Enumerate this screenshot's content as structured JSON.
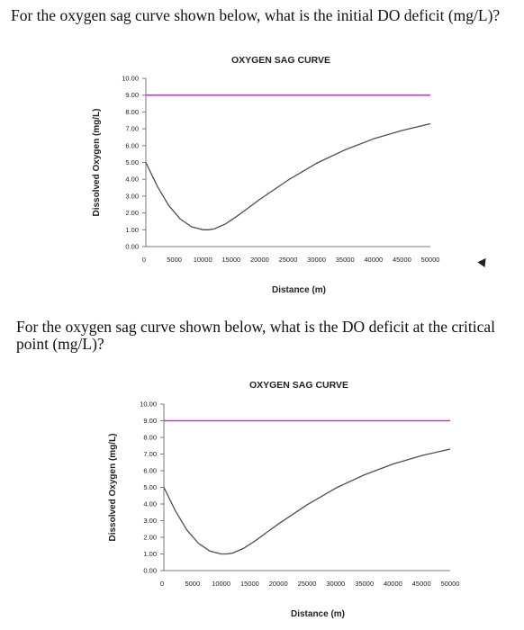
{
  "questions": {
    "q1": "For the oxygen sag curve shown below, what is the initial DO deficit (mg/L)?",
    "q2": "For the oxygen sag curve shown below, what is the DO deficit at the critical point (mg/L)?"
  },
  "chart_data": [
    {
      "type": "line",
      "title": "OXYGEN SAG CURVE",
      "xlabel": "Distance (m)",
      "ylabel": "Dissolved Oxygen (mg/L)",
      "xlim": [
        0,
        50000
      ],
      "ylim": [
        0,
        10
      ],
      "x_ticks": [
        "0",
        "5000",
        "10000",
        "15000",
        "20000",
        "25000",
        "30000",
        "35000",
        "40000",
        "45000",
        "50000"
      ],
      "y_ticks": [
        "0.00",
        "1.00",
        "2.00",
        "3.00",
        "4.00",
        "5.00",
        "6.00",
        "7.00",
        "8.00",
        "9.00",
        "10.00"
      ],
      "grid": false,
      "colors": {
        "saturation": "#b040b8",
        "curve": "#44505e",
        "axis": "#7a7a7a"
      },
      "series": [
        {
          "x": [
            0,
            50000
          ],
          "y": [
            9.0,
            9.0
          ]
        },
        {
          "x": [
            0,
            2000,
            4000,
            6000,
            8000,
            10000,
            11000,
            12000,
            14000,
            16000,
            18000,
            20000,
            25000,
            30000,
            35000,
            40000,
            45000,
            50000
          ],
          "y": [
            5.0,
            3.6,
            2.45,
            1.65,
            1.18,
            1.0,
            1.0,
            1.05,
            1.35,
            1.8,
            2.3,
            2.8,
            3.95,
            4.95,
            5.75,
            6.4,
            6.9,
            7.3
          ]
        }
      ]
    },
    {
      "type": "line",
      "title": "OXYGEN SAG CURVE",
      "xlabel": "Distance (m)",
      "ylabel": "Dissolved Oxygen (mg/L)",
      "xlim": [
        0,
        50000
      ],
      "ylim": [
        0,
        10
      ],
      "x_ticks": [
        "0",
        "5000",
        "10000",
        "15000",
        "20000",
        "25000",
        "30000",
        "35000",
        "40000",
        "45000",
        "50000"
      ],
      "y_ticks": [
        "0.00",
        "1.00",
        "2.00",
        "3.00",
        "4.00",
        "5.00",
        "6.00",
        "7.00",
        "8.00",
        "9.00",
        "10.00"
      ],
      "grid": false,
      "colors": {
        "saturation": "#b040b8",
        "curve": "#44505e",
        "axis": "#7a7a7a"
      },
      "series": [
        {
          "x": [
            0,
            50000
          ],
          "y": [
            9.0,
            9.0
          ]
        },
        {
          "x": [
            0,
            2000,
            4000,
            6000,
            8000,
            10000,
            11000,
            12000,
            14000,
            16000,
            18000,
            20000,
            25000,
            30000,
            35000,
            40000,
            45000,
            50000
          ],
          "y": [
            5.0,
            3.6,
            2.45,
            1.65,
            1.18,
            1.0,
            1.0,
            1.05,
            1.35,
            1.8,
            2.3,
            2.8,
            3.95,
            4.95,
            5.75,
            6.4,
            6.9,
            7.3
          ]
        }
      ]
    }
  ]
}
